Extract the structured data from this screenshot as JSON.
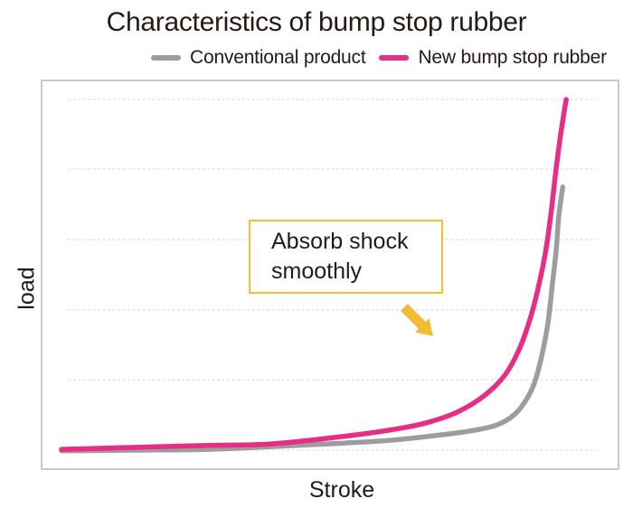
{
  "title": "Characteristics of bump stop rubber",
  "legend": {
    "items": [
      {
        "label": "Conventional product",
        "color": "#9D9D9D"
      },
      {
        "label": "New bump stop rubber",
        "color": "#E82D87"
      }
    ]
  },
  "axes": {
    "x_label": "Stroke",
    "y_label": "load"
  },
  "annotation": {
    "lines": {
      "0": "Absorb shock",
      "1": "smoothly"
    },
    "box_border_color": "#F3C12F",
    "arrow_color": "#F1BB35",
    "arrow_direction": "down-right"
  },
  "colors": {
    "text": "#251A15",
    "plot_border": "#C9C9C9",
    "gridline": "#E2E2E2"
  },
  "chart_data": {
    "type": "line",
    "title": "Characteristics of bump stop rubber",
    "xlabel": "Stroke",
    "ylabel": "load",
    "axis_tick_labels": "none (qualitative axes)",
    "units": "percent of axis range (stroke 0-100, load 0-100)",
    "grid": {
      "style": "dashed horizontal",
      "load_levels_pct": [
        5.1,
        23.1,
        41.0,
        59.0,
        77.1,
        94.9
      ],
      "x_extent_pct": [
        4.7,
        96.1
      ]
    },
    "legend_position": "top",
    "series": [
      {
        "name": "Conventional product",
        "color": "#9D9D9D",
        "points": [
          [
            3.6,
            4.9
          ],
          [
            16.4,
            5.1
          ],
          [
            28.9,
            5.3
          ],
          [
            39.8,
            6.0
          ],
          [
            52.3,
            6.9
          ],
          [
            60.2,
            7.6
          ],
          [
            68.0,
            8.8
          ],
          [
            74.2,
            10.0
          ],
          [
            78.9,
            11.6
          ],
          [
            82.0,
            14.4
          ],
          [
            84.1,
            18.5
          ],
          [
            85.5,
            23.1
          ],
          [
            86.7,
            30.1
          ],
          [
            87.7,
            38.2
          ],
          [
            88.4,
            47.5
          ],
          [
            89.1,
            56.7
          ],
          [
            89.5,
            64.8
          ],
          [
            90.2,
            72.5
          ]
        ]
      },
      {
        "name": "New bump stop rubber",
        "color": "#E82D87",
        "points": [
          [
            3.6,
            5.3
          ],
          [
            16.4,
            5.8
          ],
          [
            28.9,
            6.3
          ],
          [
            39.8,
            6.7
          ],
          [
            52.3,
            8.6
          ],
          [
            60.2,
            10.2
          ],
          [
            66.4,
            12.0
          ],
          [
            71.9,
            14.8
          ],
          [
            76.6,
            19.0
          ],
          [
            80.2,
            24.3
          ],
          [
            82.8,
            31.3
          ],
          [
            84.7,
            39.4
          ],
          [
            86.1,
            47.5
          ],
          [
            87.2,
            55.6
          ],
          [
            88.1,
            64.8
          ],
          [
            88.9,
            75.2
          ],
          [
            89.7,
            84.5
          ],
          [
            90.8,
            94.9
          ]
        ]
      }
    ],
    "annotation": {
      "text": "Absorb shock smoothly",
      "meaning": "arrow points at the gap where the new rubber carries load earlier than the conventional product"
    }
  }
}
